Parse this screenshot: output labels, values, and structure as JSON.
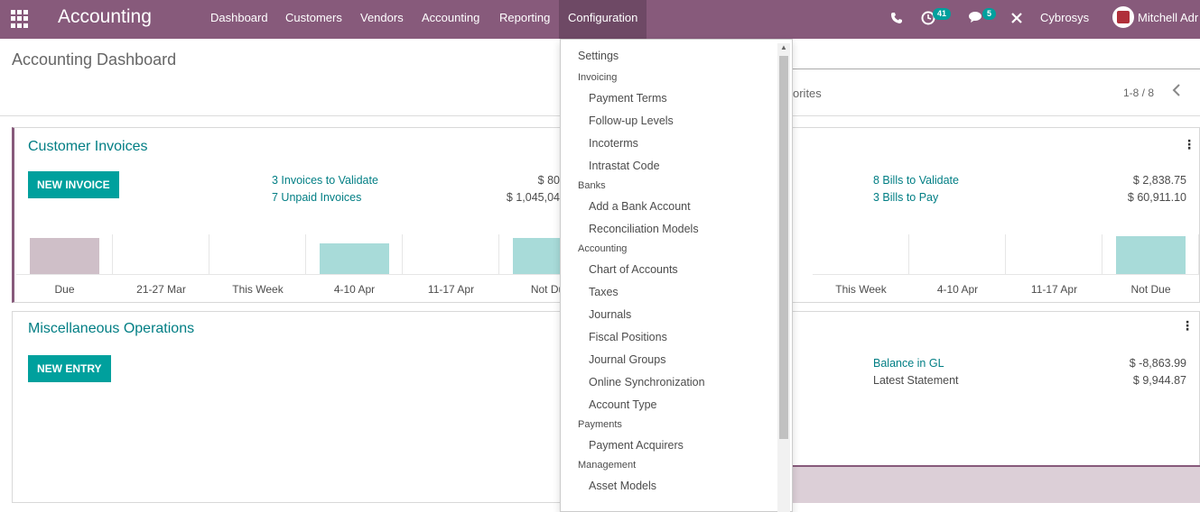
{
  "navbar": {
    "brand": "Accounting",
    "menu": [
      "Dashboard",
      "Customers",
      "Vendors",
      "Accounting",
      "Reporting",
      "Configuration"
    ],
    "activity_count": "41",
    "message_count": "5",
    "company": "Cybrosys",
    "user": "Mitchell Adr"
  },
  "control_panel": {
    "title": "Accounting Dashboard",
    "favorites_partial": "orites",
    "pager": "1-8 / 8"
  },
  "customer_invoices": {
    "title": "Customer Invoices",
    "button": "NEW INVOICE",
    "links": [
      {
        "label": "3 Invoices to Validate",
        "value": "$ 80"
      },
      {
        "label": "7 Unpaid Invoices",
        "value": "$ 1,045,04"
      }
    ],
    "chart_ticks": [
      "Due",
      "21-27 Mar",
      "This Week",
      "4-10 Apr",
      "11-17 Apr",
      "Not Du"
    ],
    "chart_levels": [
      0.9,
      0,
      0,
      0.78,
      0,
      0.9
    ],
    "colors": {
      "past": "#cfbfc8",
      "future": "#a8dbd9"
    }
  },
  "vendor_bills": {
    "links": [
      {
        "label": "8 Bills to Validate",
        "value": "$ 2,838.75"
      },
      {
        "label": "3 Bills to Pay",
        "value": "$ 60,911.10"
      }
    ],
    "chart_ticks": [
      "This Week",
      "4-10 Apr",
      "11-17 Apr",
      "Not Due"
    ],
    "chart_levels": [
      0,
      0,
      0,
      0.95
    ]
  },
  "misc_operations": {
    "title": "Miscellaneous Operations",
    "button": "NEW ENTRY"
  },
  "bank": {
    "balance_label": "Balance in GL",
    "balance_value": "$ -8,863.99",
    "statement_label": "Latest Statement",
    "statement_value": "$ 9,944.87"
  },
  "config_menu": {
    "settings": "Settings",
    "sections": [
      {
        "header": "Invoicing",
        "items": [
          "Payment Terms",
          "Follow-up Levels",
          "Incoterms",
          "Intrastat Code"
        ]
      },
      {
        "header": "Banks",
        "items": [
          "Add a Bank Account",
          "Reconciliation Models"
        ]
      },
      {
        "header": "Accounting",
        "items": [
          "Chart of Accounts",
          "Taxes",
          "Journals",
          "Fiscal Positions",
          "Journal Groups",
          "Online Synchronization",
          "Account Type"
        ]
      },
      {
        "header": "Payments",
        "items": [
          "Payment Acquirers"
        ]
      },
      {
        "header": "Management",
        "items": [
          "Asset Models"
        ]
      }
    ]
  }
}
